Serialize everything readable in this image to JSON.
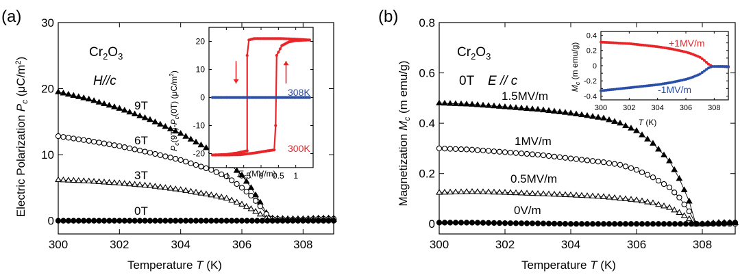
{
  "chart_data": [
    {
      "type": "scatter",
      "panel_label": "(a)",
      "xlabel": "Temperature T (K)",
      "ylabel": "Electric Polarization Pc (μC/m²)",
      "xlim": [
        300,
        309
      ],
      "ylim": [
        -2,
        30
      ],
      "xticks": [
        300,
        302,
        304,
        306,
        308
      ],
      "yticks": [
        0,
        10,
        20,
        30
      ],
      "annotations": [
        "Cr2O3",
        "H//c"
      ],
      "series": [
        {
          "name": "9T",
          "marker": "filled-triangle",
          "x": [
            300,
            301,
            302,
            303,
            304,
            305,
            305.5,
            306,
            306.3,
            306.6,
            306.8,
            307,
            307.5,
            308,
            308.5,
            309
          ],
          "y": [
            19.5,
            18.4,
            17.0,
            15.3,
            13.2,
            10.6,
            9.0,
            6.9,
            5.0,
            2.8,
            1.2,
            0.4,
            0.3,
            0.3,
            0.4,
            0.4
          ]
        },
        {
          "name": "6T",
          "marker": "open-circle",
          "x": [
            300,
            301,
            302,
            303,
            304,
            305,
            305.5,
            306,
            306.3,
            306.6,
            306.8,
            307,
            307.5,
            308,
            308.5,
            309
          ],
          "y": [
            12.8,
            12.1,
            11.3,
            10.3,
            9.2,
            7.7,
            6.7,
            5.0,
            3.8,
            2.2,
            1.0,
            0.3,
            0.2,
            0.2,
            0.3,
            0.3
          ]
        },
        {
          "name": "3T",
          "marker": "open-triangle",
          "x": [
            300,
            301,
            302,
            303,
            304,
            305,
            305.5,
            306,
            306.3,
            306.6,
            306.8,
            307,
            307.5,
            308,
            308.5,
            309
          ],
          "y": [
            6.2,
            6.0,
            5.7,
            5.3,
            4.7,
            3.9,
            3.4,
            2.5,
            1.8,
            1.0,
            0.4,
            0.1,
            0.1,
            0.1,
            0.2,
            0.2
          ]
        },
        {
          "name": "0T",
          "marker": "filled-circle",
          "x": [
            300,
            301,
            302,
            303,
            304,
            305,
            306,
            307,
            308,
            309
          ],
          "y": [
            0,
            0,
            0,
            0,
            0,
            0,
            0,
            0,
            0,
            0
          ]
        }
      ],
      "inset": {
        "type": "line",
        "xlabel": "Ec (MV/m)",
        "ylabel": "Pc(9T)-Pc(0T) (μC/m²)",
        "xlim": [
          -1.5,
          1.5
        ],
        "ylim": [
          -25,
          25
        ],
        "xticks": [
          -1,
          -0.5,
          0,
          0.5,
          1
        ],
        "yticks": [
          -20,
          -10,
          0,
          10,
          20
        ],
        "series": [
          {
            "name": "300K",
            "color": "#e8262a",
            "upper_x": [
              1.4,
              1.0,
              0.6,
              0.2,
              -0.2,
              -0.35,
              -0.4,
              -0.4,
              -0.7,
              -1.0,
              -1.4
            ],
            "upper_y": [
              20.5,
              20.8,
              21.0,
              21.0,
              21.0,
              20.5,
              15,
              -19,
              -19.8,
              -20.3,
              -20.5
            ],
            "lower_x": [
              -1.4,
              -1.0,
              -0.6,
              -0.2,
              0.2,
              0.38,
              0.42,
              0.45,
              0.6,
              0.8,
              1.0,
              1.4
            ],
            "lower_y": [
              -20.5,
              -20.5,
              -20.4,
              -19.8,
              -19.0,
              -18.7,
              -10,
              15,
              18.5,
              19.8,
              20.3,
              20.5
            ]
          },
          {
            "name": "308K",
            "color": "#2b4fa8",
            "x": [
              -1.4,
              -1.0,
              -0.5,
              0,
              0.5,
              1.0,
              1.4
            ],
            "y": [
              0,
              0,
              0,
              0,
              0,
              0,
              0
            ]
          }
        ]
      }
    },
    {
      "type": "scatter",
      "panel_label": "(b)",
      "xlabel": "Temperature T (K)",
      "ylabel": "Magnetization Mc (m emu/g)",
      "xlim": [
        300,
        309
      ],
      "ylim": [
        -0.04,
        0.8
      ],
      "xticks": [
        300,
        302,
        304,
        306,
        308
      ],
      "yticks": [
        0,
        0.2,
        0.4,
        0.6,
        0.8
      ],
      "yticklabels": [
        "0",
        "0.2",
        "0.4",
        "0.6",
        "0.8"
      ],
      "annotations": [
        "Cr2O3",
        "0T",
        "E // c"
      ],
      "series": [
        {
          "name": "1.5MV/m",
          "marker": "filled-triangle",
          "x": [
            300,
            301,
            302,
            303,
            304,
            305,
            305.5,
            306,
            306.5,
            307,
            307.3,
            307.6,
            307.8,
            308,
            308.5,
            309
          ],
          "y": [
            0.48,
            0.475,
            0.465,
            0.455,
            0.44,
            0.42,
            0.4,
            0.37,
            0.32,
            0.25,
            0.18,
            0.09,
            0.0,
            0.0,
            0.005,
            0.005
          ]
        },
        {
          "name": "1MV/m",
          "marker": "open-circle",
          "x": [
            300,
            301,
            302,
            303,
            304,
            305,
            305.5,
            306,
            306.5,
            307,
            307.3,
            307.6,
            307.8,
            308,
            308.5,
            309
          ],
          "y": [
            0.3,
            0.295,
            0.285,
            0.275,
            0.26,
            0.245,
            0.235,
            0.215,
            0.185,
            0.145,
            0.105,
            0.05,
            0.0,
            0.0,
            0.0,
            0.0
          ]
        },
        {
          "name": "0.5MV/m",
          "marker": "open-triangle",
          "x": [
            300,
            301,
            302,
            303,
            304,
            305,
            306,
            306.5,
            307,
            307.3,
            307.6,
            307.8,
            308,
            308.5,
            309
          ],
          "y": [
            0.125,
            0.128,
            0.125,
            0.12,
            0.115,
            0.108,
            0.095,
            0.083,
            0.065,
            0.045,
            0.02,
            0.0,
            0.0,
            0.005,
            0.005
          ]
        },
        {
          "name": "0V/m",
          "marker": "filled-circle",
          "x": [
            300,
            301,
            302,
            303,
            304,
            305,
            306,
            307,
            308,
            309
          ],
          "y": [
            0.005,
            0.005,
            0.003,
            0.002,
            0.0,
            0.0,
            0.0,
            0.0,
            0.0,
            0.005
          ]
        }
      ],
      "inset": {
        "type": "line",
        "xlabel": "T (K)",
        "ylabel": "Mc (m emu/g)",
        "xlim": [
          300,
          309
        ],
        "ylim": [
          -0.45,
          0.45
        ],
        "xticks": [
          300,
          302,
          304,
          306,
          308
        ],
        "yticks": [
          -0.4,
          -0.3,
          -0.2,
          -0.1,
          0,
          0.1,
          0.2,
          0.3,
          0.4
        ],
        "yticklabels": [
          "-0.4",
          "-0.3",
          "-0.2",
          "-0.1",
          "0",
          "0.1",
          "0.2",
          "0.3",
          "0.4"
        ],
        "series": [
          {
            "name": "+1MV/m",
            "color": "#e8262a",
            "x": [
              300,
              301,
              302,
              303,
              304,
              305,
              306,
              306.5,
              307,
              307.3,
              307.6,
              307.9,
              308.2,
              308.6,
              309
            ],
            "y": [
              0.31,
              0.3,
              0.29,
              0.27,
              0.25,
              0.22,
              0.18,
              0.15,
              0.11,
              0.07,
              0.02,
              -0.01,
              -0.01,
              -0.01,
              -0.02
            ]
          },
          {
            "name": "-1MV/m",
            "color": "#2b4fa8",
            "x": [
              300,
              301,
              302,
              303,
              304,
              305,
              306,
              306.5,
              307,
              307.3,
              307.6,
              307.9,
              308.2,
              308.6,
              309
            ],
            "y": [
              -0.33,
              -0.31,
              -0.29,
              -0.27,
              -0.25,
              -0.22,
              -0.18,
              -0.15,
              -0.11,
              -0.07,
              -0.03,
              -0.01,
              -0.01,
              -0.01,
              -0.01
            ]
          }
        ]
      }
    }
  ]
}
